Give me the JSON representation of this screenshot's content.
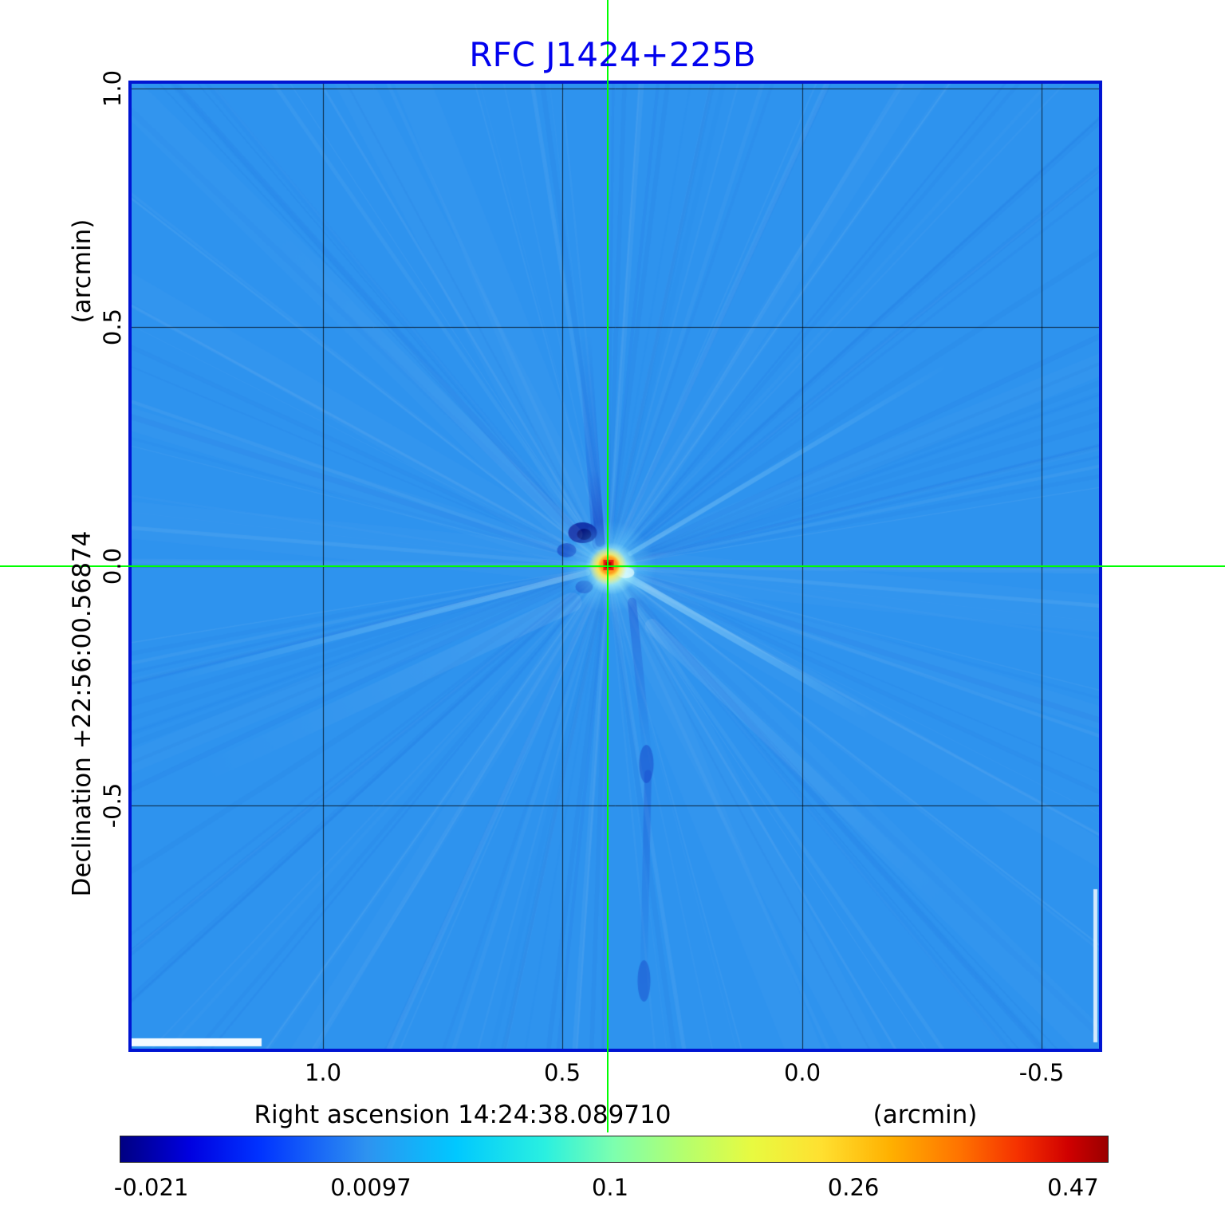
{
  "title": "RFC J1424+225B",
  "chart_data": {
    "type": "heatmap",
    "title": "RFC J1424+225B",
    "xlabel": "Right ascension  14:24:38.089710",
    "xlabel_unit": "(arcmin)",
    "ylabel": "Declination  +22:56:00.56874",
    "ylabel_unit": "(arcmin)",
    "x_ticks": [
      1.0,
      0.5,
      0.0,
      -0.5
    ],
    "y_ticks": [
      1.0,
      0.5,
      0.0,
      -0.5
    ],
    "x_tick_labels": [
      "1.0",
      "0.5",
      "0.0",
      "-0.5"
    ],
    "y_tick_labels": [
      "1.0",
      "0.5",
      "0.0",
      "-0.5"
    ],
    "x_range": [
      1.4,
      -0.62
    ],
    "y_range": [
      -1.01,
      1.01
    ],
    "grid": true,
    "source": {
      "x": 0.405,
      "y": 0.0,
      "peak_value": 0.47
    },
    "colors": {
      "background": "#2e93ee",
      "crosshair": "#00ff00",
      "title": "#0202ee",
      "frame": "#0014d2",
      "peak_core": "#a80400",
      "peak_hot": "#e31d10"
    },
    "colorbar": {
      "colormap": "jet",
      "tick_labels": [
        "-0.021",
        "0.0097",
        "0.1",
        "0.26",
        "0.47"
      ],
      "tick_positions": [
        0.032,
        0.254,
        0.496,
        0.742,
        0.964
      ],
      "vmin": -0.021,
      "vmax": 0.47
    }
  }
}
